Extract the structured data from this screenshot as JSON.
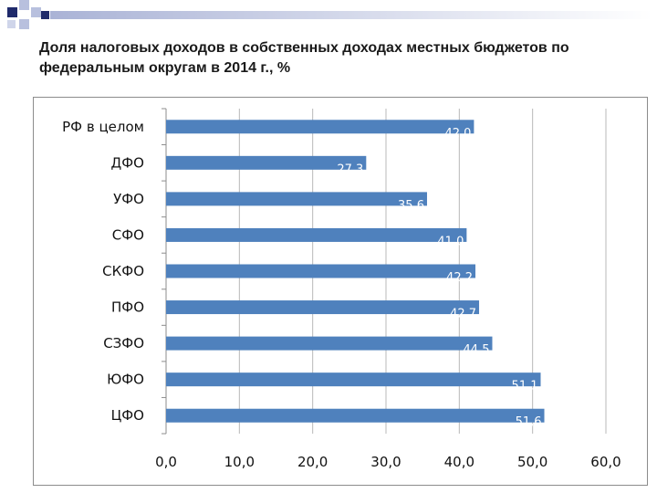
{
  "colors": {
    "bar": "#4f81bd",
    "grid": "#b8b8b8",
    "deco_dark": "#1f2a6b",
    "deco_light": "#b8c0de"
  },
  "chart_data": {
    "type": "bar",
    "orientation": "horizontal",
    "title": "Доля налоговых доходов в собственных доходах местных бюджетов по федеральным округам в 2014 г., %",
    "categories": [
      "РФ в целом",
      "ДФО",
      "УФО",
      "СФО",
      "СКФО",
      "ПФО",
      "СЗФО",
      "ЮФО",
      "ЦФО"
    ],
    "values": [
      42.0,
      27.3,
      35.6,
      41.0,
      42.2,
      42.7,
      44.5,
      51.1,
      51.6
    ],
    "value_labels": [
      "42,0",
      "27,3",
      "35,6",
      "41,0",
      "42,2",
      "42,7",
      "44,5",
      "51,1",
      "51,6"
    ],
    "xlim": [
      0,
      60
    ],
    "x_ticks": [
      0,
      10,
      20,
      30,
      40,
      50,
      60
    ],
    "x_tick_labels": [
      "0,0",
      "10,0",
      "20,0",
      "30,0",
      "40,0",
      "50,0",
      "60,0"
    ],
    "grid": true,
    "legend": "none"
  }
}
